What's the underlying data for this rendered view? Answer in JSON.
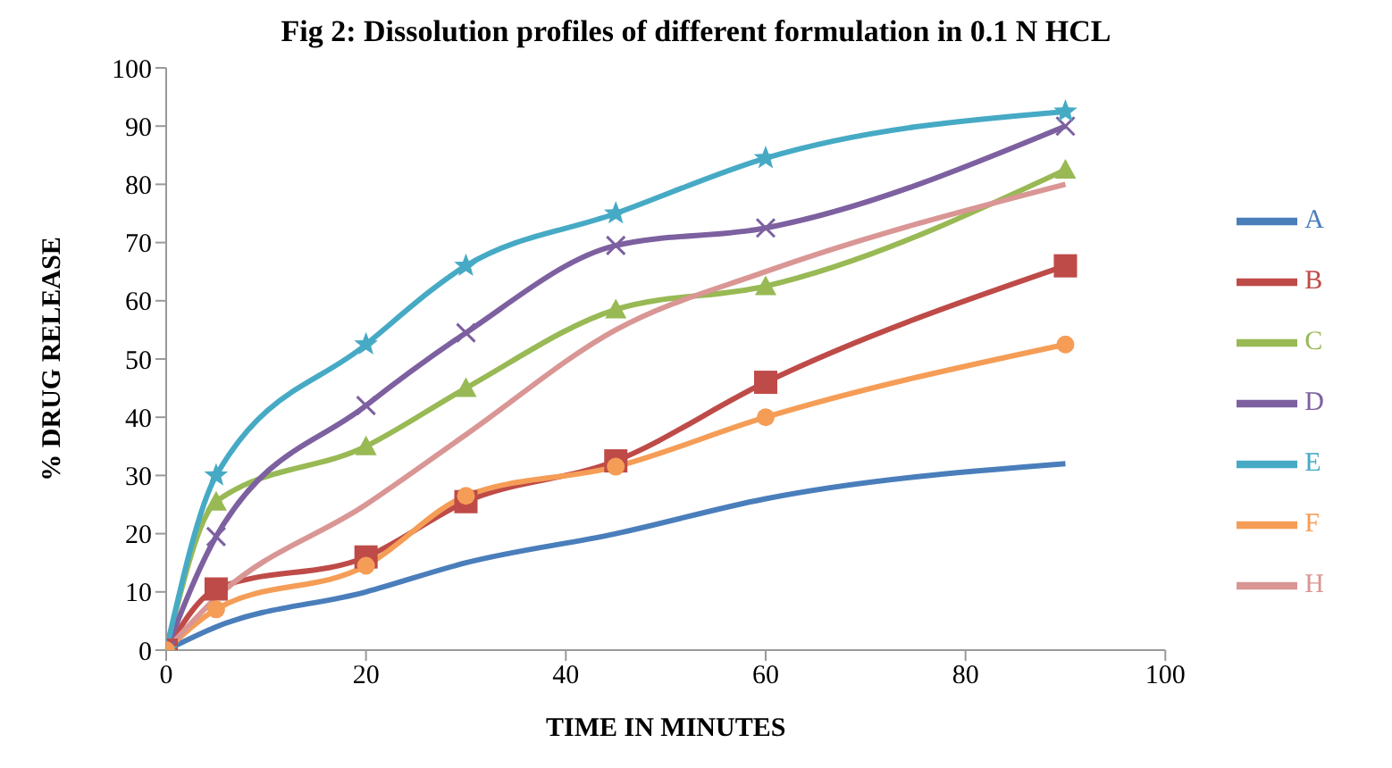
{
  "chart_data": {
    "type": "line",
    "title": "Fig 2: Dissolution profiles of different formulation in 0.1 N HCL",
    "xlabel": "TIME IN MINUTES",
    "ylabel": "% DRUG RELEASE",
    "x": [
      0,
      5,
      20,
      30,
      45,
      60,
      90
    ],
    "series": [
      {
        "name": "A",
        "color": "#4a7ebb",
        "marker": "none",
        "values": [
          0,
          4,
          10,
          15,
          20,
          26,
          32
        ]
      },
      {
        "name": "B",
        "color": "#be4b48",
        "marker": "square",
        "values": [
          0,
          10.5,
          16,
          25.5,
          32.5,
          46,
          66
        ]
      },
      {
        "name": "C",
        "color": "#98b954",
        "marker": "triangle",
        "values": [
          0,
          25.5,
          35,
          45,
          58.5,
          62.5,
          82.5
        ]
      },
      {
        "name": "D",
        "color": "#7d60a0",
        "marker": "cross",
        "values": [
          0,
          19.5,
          42,
          54.5,
          69.5,
          72.5,
          90
        ]
      },
      {
        "name": "E",
        "color": "#46aac5",
        "marker": "star",
        "values": [
          0,
          30,
          52.5,
          66,
          75,
          84.5,
          92.5
        ]
      },
      {
        "name": "F",
        "color": "#f59d56",
        "marker": "circle",
        "values": [
          0,
          7,
          14.5,
          26.5,
          31.5,
          40,
          52.5
        ]
      },
      {
        "name": "H",
        "color": "#d99694",
        "marker": "none",
        "values": [
          0,
          9,
          25,
          37,
          55,
          65,
          80
        ]
      }
    ],
    "xlim": [
      0,
      100
    ],
    "xticks": [
      0,
      20,
      40,
      60,
      80,
      100
    ],
    "ylim": [
      0,
      100
    ],
    "yticks": [
      0,
      10,
      20,
      30,
      40,
      50,
      60,
      70,
      80,
      90,
      100
    ],
    "grid": false,
    "legend": "right"
  }
}
